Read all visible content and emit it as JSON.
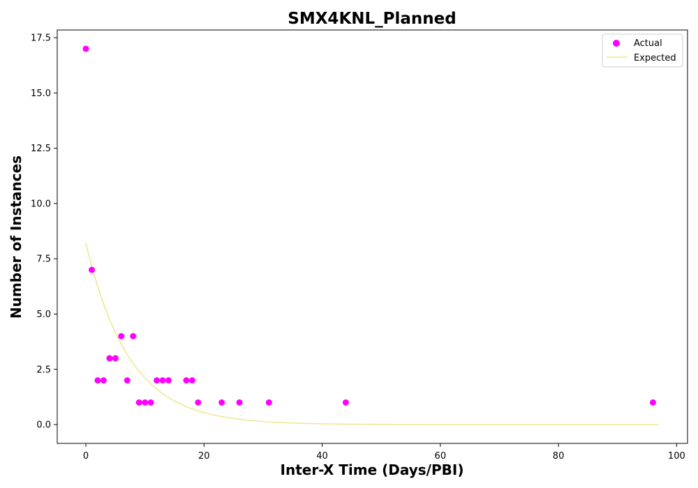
{
  "chart_data": {
    "type": "scatter",
    "title": "SMX4KNL_Planned",
    "xlabel": "Inter-X Time (Days/PBI)",
    "ylabel": "Number of Instances",
    "xlim": [
      -4.85,
      101.85
    ],
    "ylim": [
      -0.85,
      17.85
    ],
    "xticks": [
      0,
      20,
      40,
      60,
      80,
      100
    ],
    "yticks": [
      0.0,
      2.5,
      5.0,
      7.5,
      10.0,
      12.5,
      15.0,
      17.5
    ],
    "xtick_labels": [
      "0",
      "20",
      "40",
      "60",
      "80",
      "100"
    ],
    "ytick_labels": [
      "0.0",
      "2.5",
      "5.0",
      "7.5",
      "10.0",
      "12.5",
      "15.0",
      "17.5"
    ],
    "legend_position": "top-right",
    "grid": false,
    "series": [
      {
        "name": "Actual",
        "kind": "scatter",
        "color": "#ff00ff",
        "points": [
          [
            0,
            17
          ],
          [
            1,
            7
          ],
          [
            2,
            2
          ],
          [
            3,
            2
          ],
          [
            4,
            3
          ],
          [
            5,
            3
          ],
          [
            6,
            4
          ],
          [
            7,
            2
          ],
          [
            8,
            4
          ],
          [
            9,
            1
          ],
          [
            10,
            1
          ],
          [
            11,
            1
          ],
          [
            12,
            2
          ],
          [
            13,
            2
          ],
          [
            14,
            2
          ],
          [
            17,
            2
          ],
          [
            18,
            2
          ],
          [
            19,
            1
          ],
          [
            23,
            1
          ],
          [
            26,
            1
          ],
          [
            31,
            1
          ],
          [
            44,
            1
          ],
          [
            96,
            1
          ]
        ]
      },
      {
        "name": "Expected",
        "kind": "line",
        "color": "#f0e68c",
        "model": "exponential",
        "amplitude": 8.2,
        "rate": 0.1357,
        "x_range": [
          0,
          97
        ]
      }
    ]
  }
}
